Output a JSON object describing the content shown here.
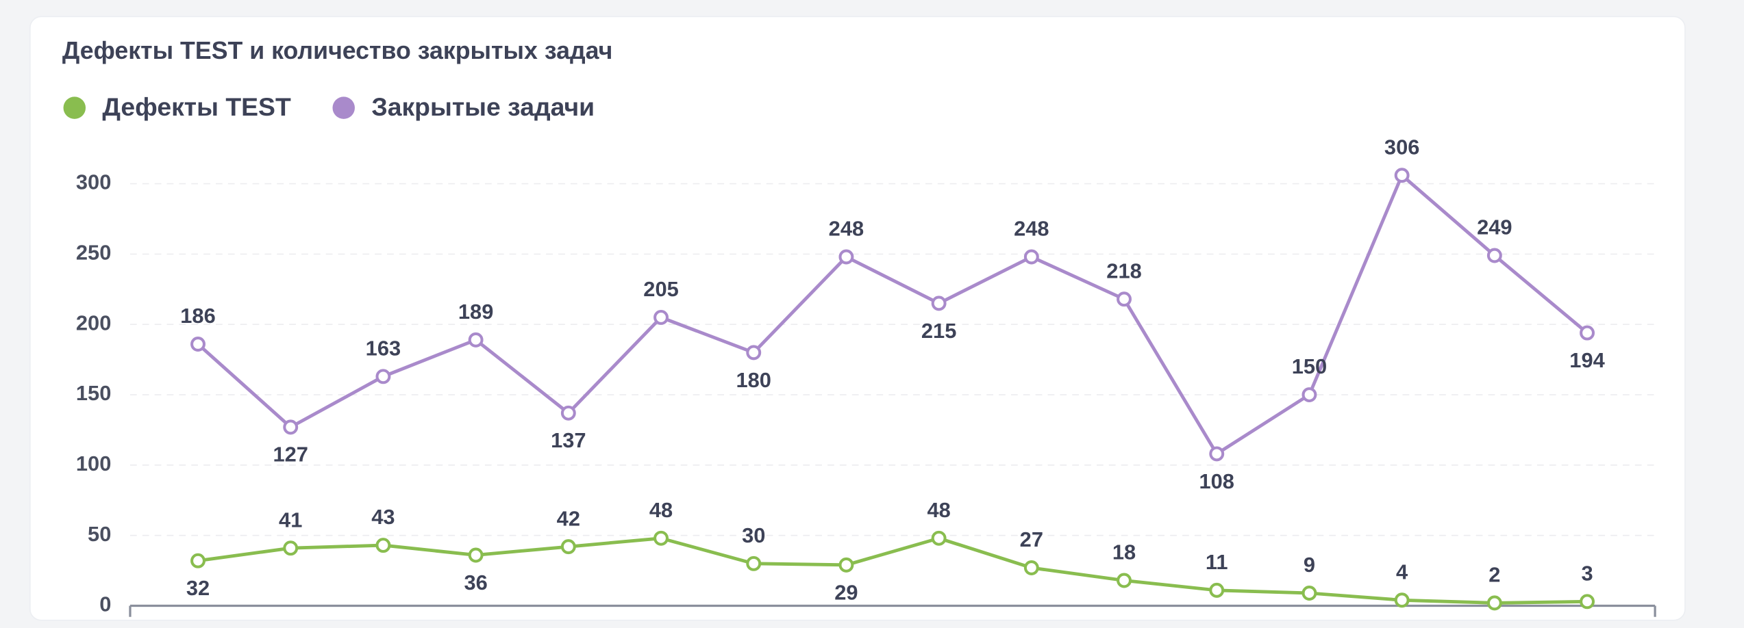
{
  "chart_data": {
    "type": "line",
    "title": "Дефекты TEST и количество закрытых задач",
    "categories": [
      null,
      null,
      null,
      null,
      null,
      null,
      null,
      null,
      null,
      null,
      null,
      null,
      null,
      null,
      null,
      null
    ],
    "series": [
      {
        "name": "Дефекты TEST",
        "color": "#89bd4f",
        "values": [
          32,
          41,
          43,
          36,
          42,
          48,
          30,
          29,
          48,
          27,
          18,
          11,
          9,
          4,
          2,
          3
        ]
      },
      {
        "name": "Закрытые задачи",
        "color": "#a98acb",
        "values": [
          186,
          127,
          163,
          189,
          137,
          205,
          180,
          248,
          215,
          248,
          218,
          108,
          150,
          306,
          249,
          194
        ]
      }
    ],
    "ylim": [
      0,
      320
    ],
    "yticks": [
      0,
      50,
      100,
      150,
      200,
      250,
      300
    ],
    "grid": true,
    "legend": "top-left"
  }
}
